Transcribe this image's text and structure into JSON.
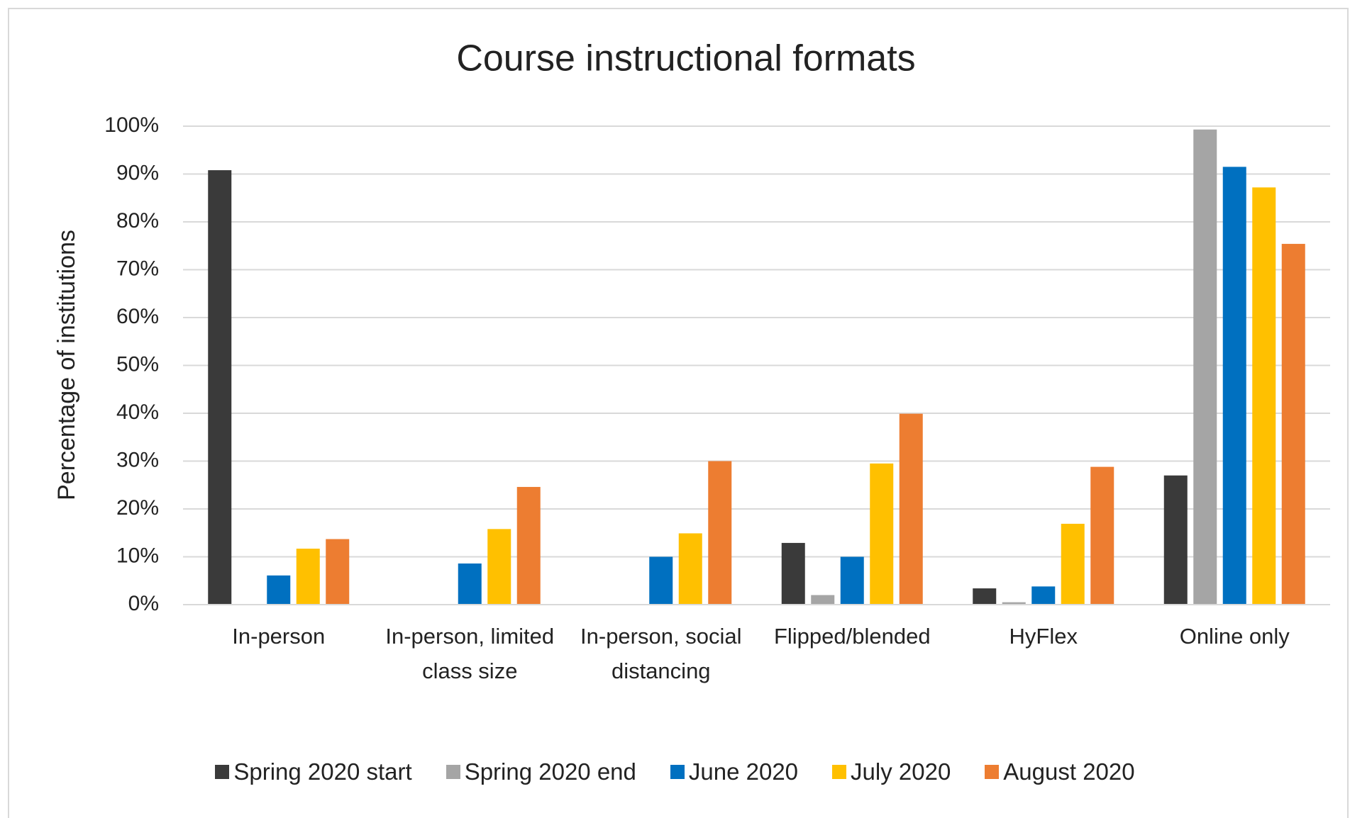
{
  "chart_data": {
    "type": "bar",
    "title": "Course instructional formats",
    "y_label": "Percentage of institutions",
    "categories": [
      "In-person",
      "In-person, limited class size",
      "In-person, social distancing",
      "Flipped/blended",
      "HyFlex",
      "Online only"
    ],
    "series": [
      {
        "name": "Spring 2020 start",
        "color": "#3a3a3a",
        "values": [
          90.8,
          0,
          0,
          12.9,
          3.4,
          27
        ]
      },
      {
        "name": "Spring 2020 end",
        "color": "#a5a5a5",
        "values": [
          0,
          0,
          0,
          2,
          0.5,
          99.3
        ]
      },
      {
        "name": "June 2020",
        "color": "#0070c0",
        "values": [
          6.1,
          8.6,
          10,
          10,
          3.8,
          91.5
        ]
      },
      {
        "name": "July 2020",
        "color": "#ffc000",
        "values": [
          11.7,
          15.8,
          14.9,
          29.5,
          16.9,
          87.2
        ]
      },
      {
        "name": "August 2020",
        "color": "#ed7d31",
        "values": [
          13.7,
          24.6,
          30,
          39.9,
          28.8,
          75.4
        ]
      }
    ],
    "ylim": [
      0,
      100
    ],
    "yticks": [
      {
        "value": 0,
        "label": "0%"
      },
      {
        "value": 10,
        "label": "10%"
      },
      {
        "value": 20,
        "label": "20%"
      },
      {
        "value": 30,
        "label": "30%"
      },
      {
        "value": 40,
        "label": "40%"
      },
      {
        "value": 50,
        "label": "50%"
      },
      {
        "value": 60,
        "label": "60%"
      },
      {
        "value": 70,
        "label": "70%"
      },
      {
        "value": 80,
        "label": "80%"
      },
      {
        "value": 90,
        "label": "90%"
      },
      {
        "value": 100,
        "label": "100%"
      }
    ],
    "grid": true,
    "legend": "bottom"
  }
}
